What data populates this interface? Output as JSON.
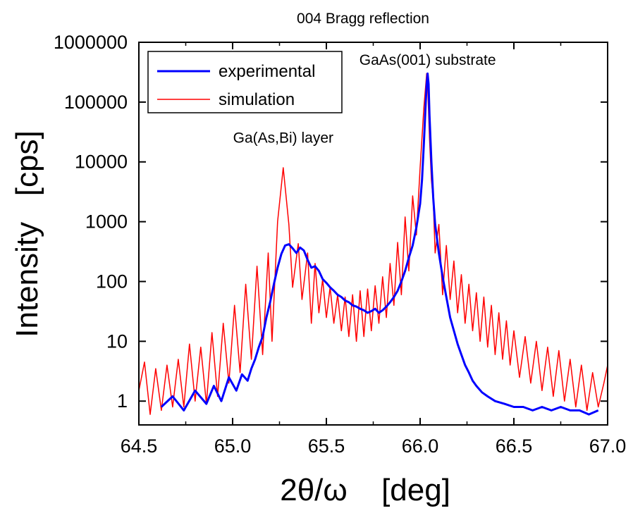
{
  "chart_data": {
    "type": "line",
    "title": "004 Bragg reflection",
    "xlabel_symbol": "2θ/ω",
    "xlabel_unit": "[deg]",
    "ylabel": "Intensity   [cps]",
    "xlim": [
      64.5,
      67.0
    ],
    "ylim": [
      0.4,
      1000000
    ],
    "yscale": "log",
    "x_ticks": [
      "64.5",
      "65.0",
      "65.5",
      "66.0",
      "66.5",
      "67.0"
    ],
    "x_tick_values": [
      64.5,
      65.0,
      65.5,
      66.0,
      66.5,
      67.0
    ],
    "y_ticks": [
      "1",
      "10",
      "100",
      "1000",
      "10000",
      "100000",
      "1000000"
    ],
    "y_tick_values": [
      1,
      10,
      100,
      1000,
      10000,
      100000,
      1000000
    ],
    "legend_position": "top-left",
    "grid": false,
    "annotations": [
      {
        "text": "GaAs(001) substrate",
        "x": 66.04,
        "y": 420000
      },
      {
        "text": "Ga(As,Bi) layer",
        "x": 65.27,
        "y": 21000
      }
    ],
    "series": [
      {
        "name": "experimental",
        "color": "#0000ff",
        "x": [
          64.62,
          64.68,
          64.74,
          64.8,
          64.86,
          64.9,
          64.94,
          64.98,
          65.02,
          65.05,
          65.08,
          65.1,
          65.12,
          65.14,
          65.16,
          65.18,
          65.2,
          65.22,
          65.24,
          65.26,
          65.28,
          65.3,
          65.32,
          65.34,
          65.36,
          65.38,
          65.4,
          65.42,
          65.44,
          65.46,
          65.48,
          65.5,
          65.52,
          65.54,
          65.56,
          65.58,
          65.6,
          65.62,
          65.64,
          65.66,
          65.68,
          65.7,
          65.72,
          65.74,
          65.76,
          65.78,
          65.8,
          65.82,
          65.84,
          65.86,
          65.88,
          65.9,
          65.92,
          65.94,
          65.96,
          65.98,
          66.0,
          66.01,
          66.02,
          66.03,
          66.035,
          66.04,
          66.045,
          66.05,
          66.06,
          66.07,
          66.08,
          66.1,
          66.12,
          66.14,
          66.16,
          66.18,
          66.2,
          66.22,
          66.24,
          66.26,
          66.28,
          66.3,
          66.33,
          66.36,
          66.4,
          66.45,
          66.5,
          66.55,
          66.6,
          66.65,
          66.7,
          66.75,
          66.8,
          66.85,
          66.9,
          66.95
        ],
        "y": [
          0.8,
          1.2,
          0.7,
          1.5,
          0.9,
          1.8,
          1.0,
          2.5,
          1.5,
          2.8,
          2.2,
          3.5,
          5,
          8,
          12,
          25,
          45,
          90,
          170,
          290,
          400,
          420,
          360,
          300,
          370,
          330,
          230,
          170,
          180,
          150,
          110,
          95,
          80,
          70,
          60,
          55,
          48,
          45,
          40,
          38,
          35,
          33,
          30,
          32,
          35,
          30,
          33,
          38,
          45,
          55,
          70,
          100,
          150,
          250,
          400,
          800,
          2000,
          5000,
          20000,
          100000,
          200000,
          300000,
          200000,
          60000,
          10000,
          2500,
          900,
          300,
          120,
          55,
          25,
          15,
          9,
          6,
          4,
          3,
          2.2,
          1.8,
          1.4,
          1.2,
          1.0,
          0.9,
          0.8,
          0.8,
          0.7,
          0.8,
          0.7,
          0.8,
          0.7,
          0.7,
          0.6,
          0.7
        ]
      },
      {
        "name": "simulation",
        "color": "#ff0000",
        "x": [
          64.5,
          64.53,
          64.56,
          64.59,
          64.62,
          64.65,
          64.68,
          64.71,
          64.74,
          64.77,
          64.8,
          64.83,
          64.86,
          64.89,
          64.92,
          64.95,
          64.98,
          65.01,
          65.04,
          65.07,
          65.1,
          65.13,
          65.16,
          65.19,
          65.21,
          65.24,
          65.27,
          65.3,
          65.32,
          65.35,
          65.37,
          65.4,
          65.42,
          65.44,
          65.46,
          65.48,
          65.5,
          65.52,
          65.54,
          65.56,
          65.58,
          65.6,
          65.62,
          65.64,
          65.66,
          65.68,
          65.7,
          65.72,
          65.74,
          65.76,
          65.78,
          65.8,
          65.82,
          65.84,
          65.86,
          65.88,
          65.9,
          65.92,
          65.94,
          65.96,
          65.98,
          66.0,
          66.02,
          66.035,
          66.04,
          66.05,
          66.06,
          66.07,
          66.08,
          66.1,
          66.12,
          66.14,
          66.16,
          66.18,
          66.2,
          66.22,
          66.24,
          66.26,
          66.28,
          66.3,
          66.32,
          66.34,
          66.36,
          66.38,
          66.4,
          66.42,
          66.44,
          66.46,
          66.48,
          66.5,
          66.53,
          66.56,
          66.59,
          66.62,
          66.65,
          66.68,
          66.71,
          66.74,
          66.77,
          66.8,
          66.83,
          66.86,
          66.89,
          66.92,
          66.95,
          66.98,
          67.0
        ],
        "y": [
          1.5,
          4.5,
          0.6,
          3.5,
          0.7,
          4,
          0.8,
          5,
          0.8,
          9,
          1,
          8,
          0.9,
          14,
          1.2,
          20,
          2,
          40,
          3,
          90,
          5,
          180,
          6,
          300,
          10,
          1000,
          8000,
          900,
          80,
          430,
          50,
          300,
          20,
          200,
          30,
          110,
          25,
          80,
          20,
          60,
          15,
          55,
          12,
          60,
          10,
          70,
          12,
          75,
          15,
          85,
          20,
          120,
          25,
          200,
          40,
          450,
          60,
          1200,
          150,
          2700,
          600,
          8000,
          80000,
          300000,
          200000,
          25000,
          5000,
          2300,
          300,
          900,
          60,
          400,
          50,
          220,
          30,
          130,
          20,
          90,
          15,
          65,
          10,
          55,
          8,
          40,
          6,
          30,
          5,
          22,
          4,
          15,
          2.5,
          12,
          2,
          10,
          1.5,
          8,
          1.2,
          7,
          1,
          5,
          0.8,
          4,
          0.7,
          3,
          0.8,
          2,
          4
        ]
      }
    ]
  }
}
